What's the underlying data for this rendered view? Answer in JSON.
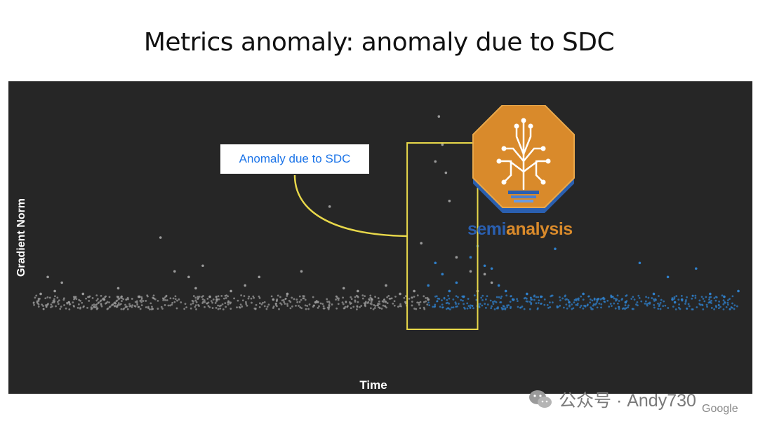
{
  "title": "Metrics anomaly: anomaly due to SDC",
  "callout": {
    "label": "Anomaly due to SDC"
  },
  "logo": {
    "text_part1": "semi",
    "text_part2": "analysis",
    "icon": "circuit-tree-lightbulb-icon"
  },
  "watermark": {
    "icon": "wechat-icon",
    "text": "公众号 · Andy730"
  },
  "brand": "Google",
  "colors": {
    "background": "#262626",
    "normal_points": "#9a9a9a",
    "anomaly_points": "#2f7fc9",
    "highlight_box": "#e8d84a",
    "callout_text": "#1a73e8"
  },
  "chart_data": {
    "type": "scatter",
    "title": "",
    "xlabel": "Time",
    "ylabel": "Gradient Norm",
    "xlim": [
      0,
      100
    ],
    "ylim": [
      0,
      100
    ],
    "grid": false,
    "legend": "none",
    "baseline_level": 24,
    "highlight_range": [
      53,
      63
    ],
    "annotation": "Anomaly due to SDC",
    "series": [
      {
        "role": "normal",
        "color": "#9a9a9a",
        "x": [
          1,
          2,
          3,
          4,
          5,
          7,
          10,
          12,
          15,
          18,
          20,
          22,
          23,
          24,
          25,
          26,
          28,
          30,
          32,
          34,
          36,
          38,
          40,
          42,
          44,
          46,
          48,
          50,
          52,
          54,
          55,
          56,
          57,
          57.5,
          58,
          58.5,
          59,
          60,
          62,
          63,
          64,
          65
        ],
        "y": [
          27,
          33,
          28,
          31,
          24,
          27,
          25,
          29,
          26,
          47,
          35,
          33,
          29,
          37,
          26,
          25,
          28,
          30,
          33,
          25,
          27,
          35,
          24,
          58,
          29,
          28,
          25,
          30,
          27,
          28,
          45,
          25,
          74,
          90,
          80,
          70,
          60,
          40,
          35,
          28,
          34,
          31
        ]
      },
      {
        "role": "anomaly",
        "color": "#2f7fc9",
        "x": [
          56,
          57,
          58,
          59,
          60,
          61,
          62,
          63,
          64,
          65,
          66,
          67,
          68,
          70,
          72,
          74,
          76,
          78,
          80,
          82,
          84,
          86,
          88,
          90,
          91,
          92,
          94,
          96,
          98,
          100
        ],
        "y": [
          30,
          38,
          34,
          28,
          31,
          26,
          40,
          44,
          37,
          36,
          30,
          28,
          25,
          27,
          26,
          43,
          24,
          27,
          25,
          26,
          24,
          38,
          27,
          33,
          24,
          25,
          36,
          27,
          26,
          28
        ]
      }
    ]
  }
}
